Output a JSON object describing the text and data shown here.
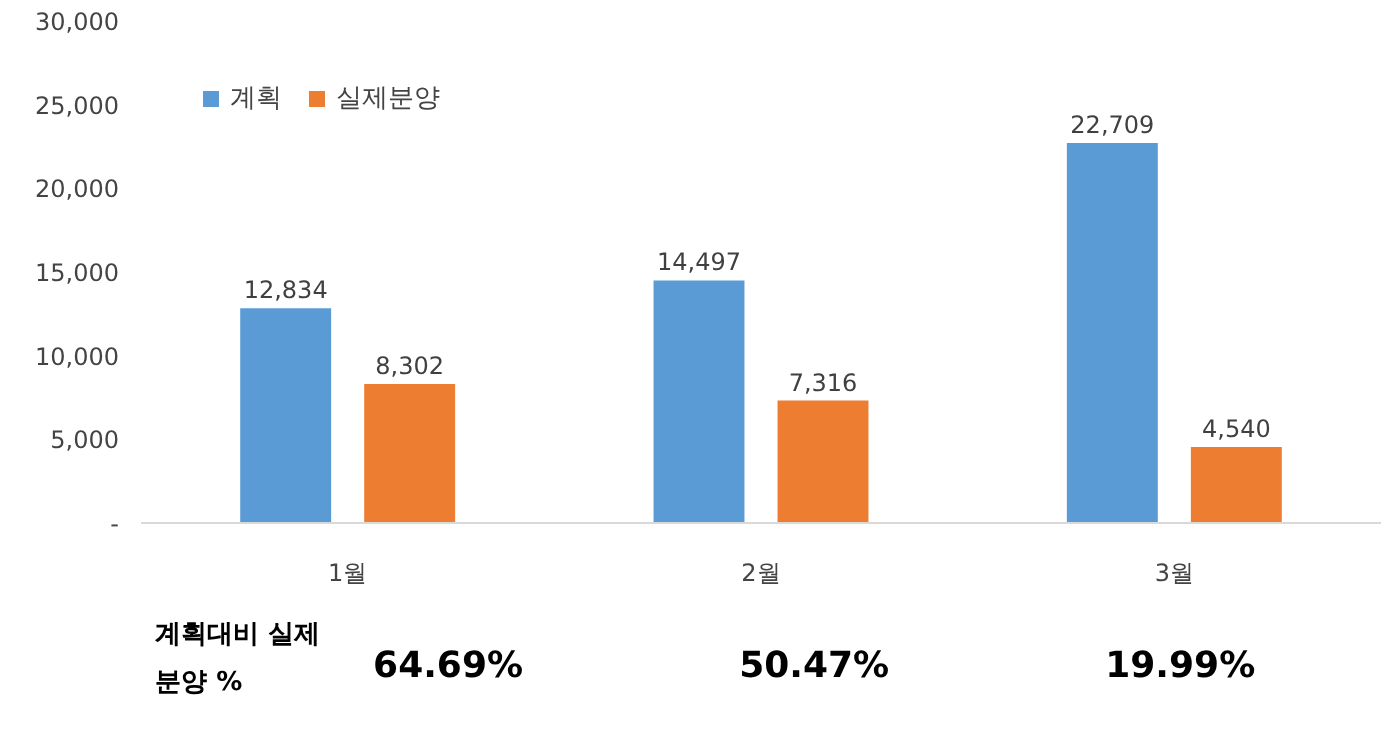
{
  "chart_data": {
    "type": "bar",
    "categories": [
      "1월",
      "2월",
      "3월"
    ],
    "series": [
      {
        "name": "계획",
        "color": "#5b9bd5",
        "values": [
          12834,
          14497,
          22709
        ],
        "value_labels": [
          "12,834",
          "14,497",
          "22,709"
        ]
      },
      {
        "name": "실제분양",
        "color": "#ed7d31",
        "values": [
          8302,
          7316,
          4540
        ],
        "value_labels": [
          "8,302",
          "7,316",
          "4,540"
        ]
      }
    ],
    "ylim": [
      0,
      30000
    ],
    "yticks": [
      {
        "value": 0,
        "label": "-"
      },
      {
        "value": 5000,
        "label": "5,000"
      },
      {
        "value": 10000,
        "label": "10,000"
      },
      {
        "value": 15000,
        "label": "15,000"
      },
      {
        "value": 20000,
        "label": "20,000"
      },
      {
        "value": 25000,
        "label": "25,000"
      },
      {
        "value": 30000,
        "label": "30,000"
      }
    ],
    "data_labels": true,
    "legend": "top left",
    "grid": false,
    "annotations": [
      "계획대비 실제\n분양 %",
      "64.69%",
      "50.47%",
      "19.99%"
    ]
  }
}
